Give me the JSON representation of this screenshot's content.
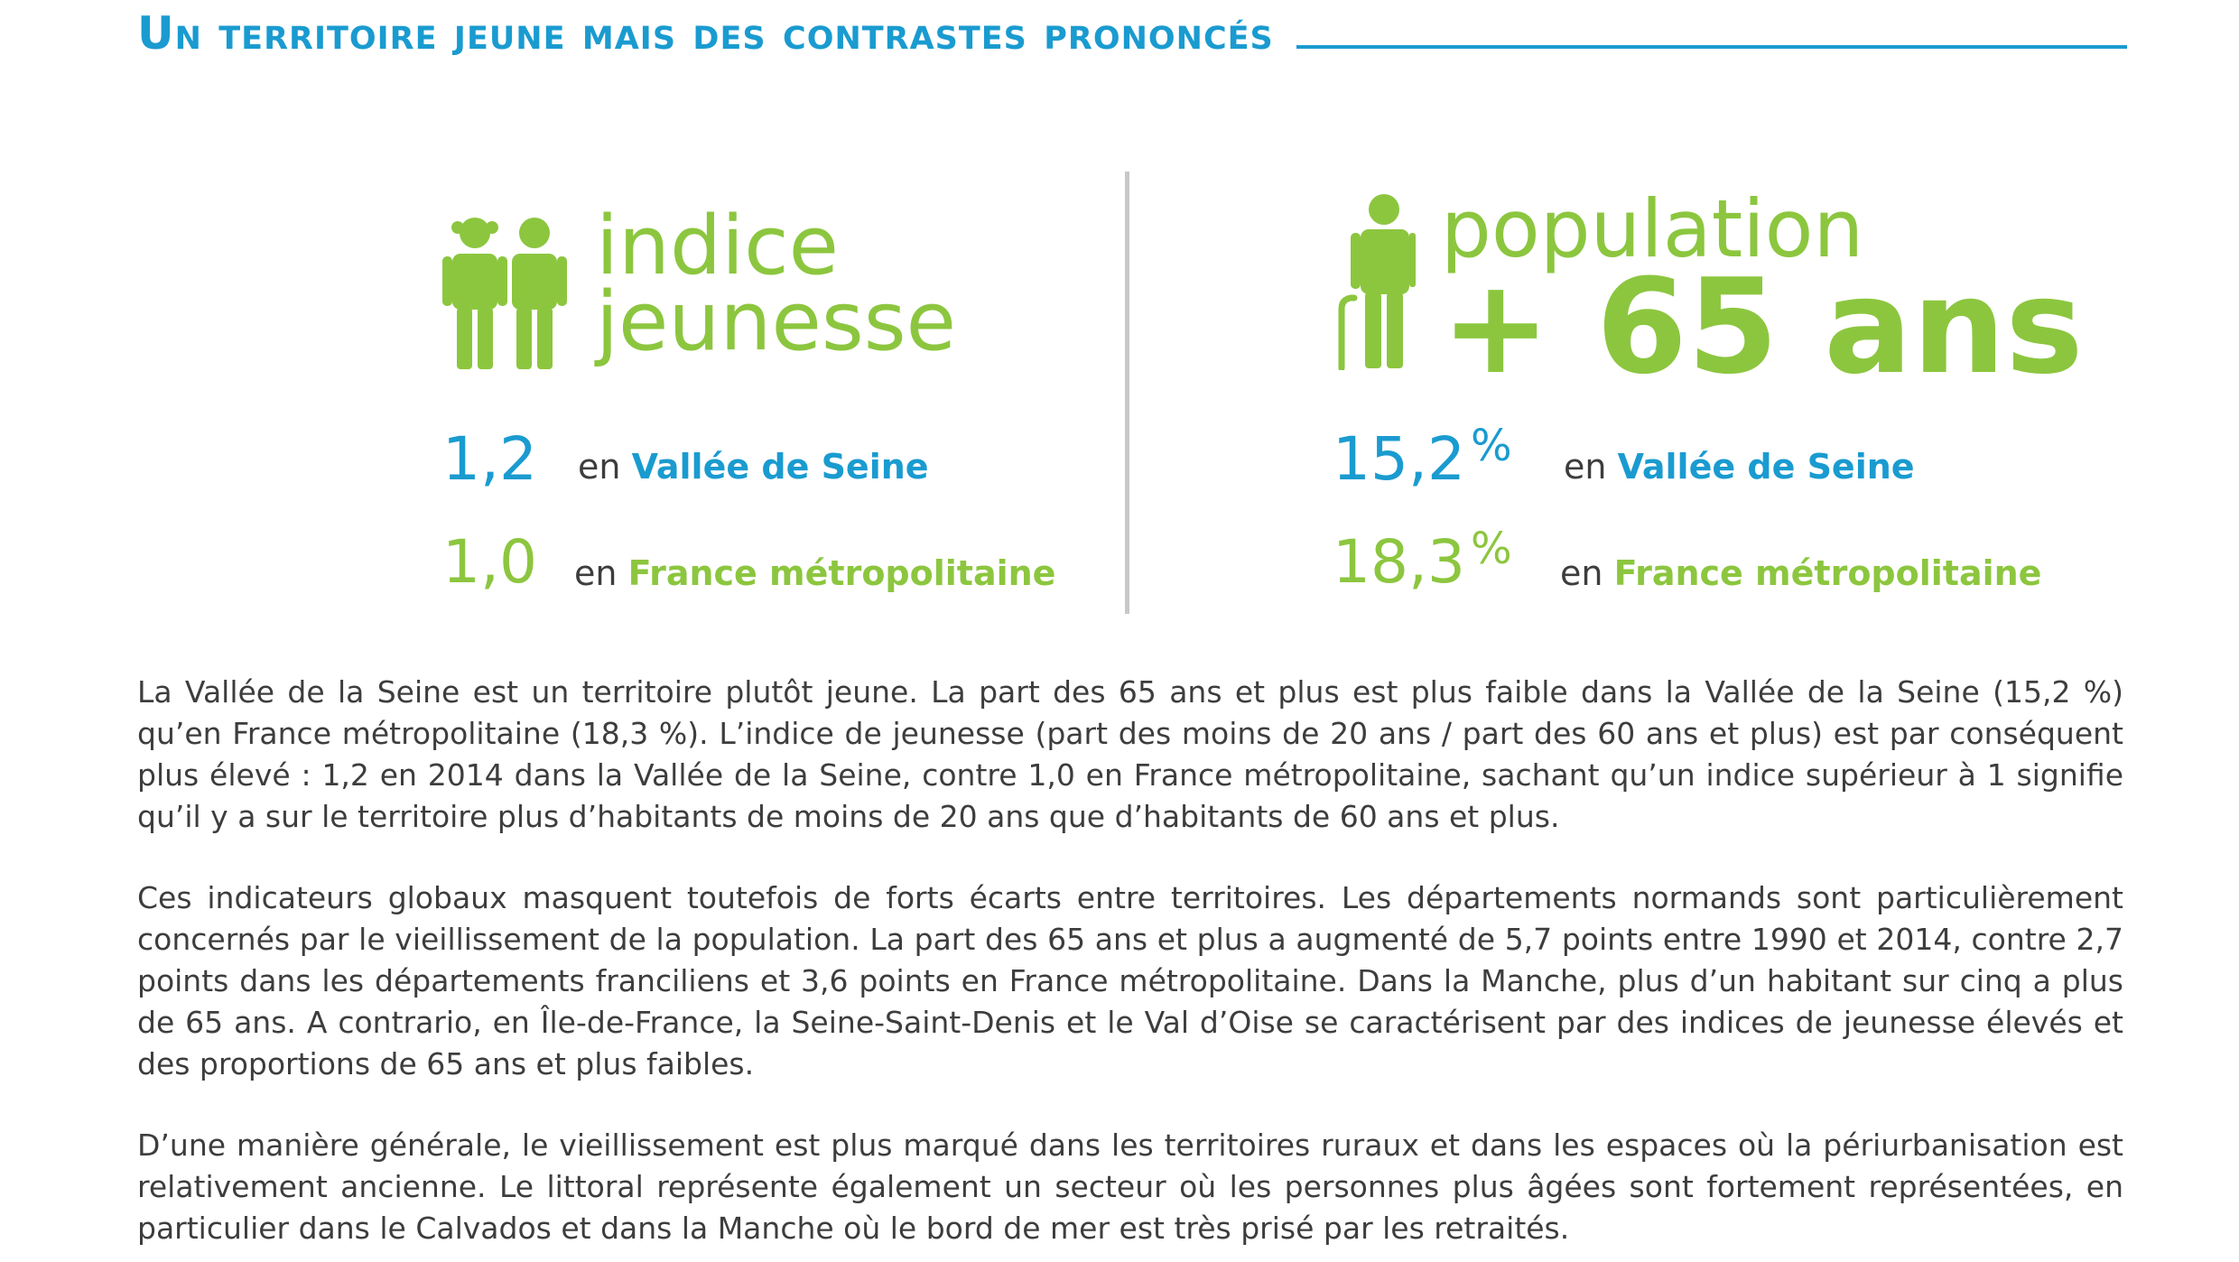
{
  "header": {
    "title": "Un territoire jeune mais des contrastes prononcés"
  },
  "left_panel": {
    "icon": "children-icon",
    "label_line1": "indice",
    "label_line2": "jeunesse",
    "rows": [
      {
        "value": "1,2",
        "prefix": "en",
        "location": "Vallée de Seine",
        "color": "#1a9bd0"
      },
      {
        "value": "1,0",
        "prefix": "en",
        "location": "France métropolitaine",
        "color": "#8cc63f"
      }
    ]
  },
  "right_panel": {
    "icon": "elderly-person-with-cane-icon",
    "label_line1": "population",
    "label_line2": "+ 65 ans",
    "rows": [
      {
        "value": "15,2",
        "unit": "%",
        "prefix": "en",
        "location": "Vallée de Seine",
        "color": "#1a9bd0"
      },
      {
        "value": "18,3",
        "unit": "%",
        "prefix": "en",
        "location": "France métropolitaine",
        "color": "#8cc63f"
      }
    ]
  },
  "colors": {
    "blue": "#1a9bd0",
    "green": "#8cc63f",
    "text": "#3d3d3d",
    "divider": "#c8c8c8"
  },
  "paragraphs": [
    "La Vallée de la Seine est un territoire plutôt jeune. La part des 65 ans et plus est plus faible dans la Vallée de la Seine (15,2 %) qu’en France métropolitaine (18,3 %). L’indice de jeunesse (part des moins de 20 ans / part des 60 ans et plus) est par conséquent plus élevé : 1,2 en 2014 dans la Vallée de la Seine, contre 1,0 en France métropolitaine, sachant qu’un indice supérieur à 1 signifie qu’il y a sur le territoire plus d’habitants de moins de 20 ans que d’habitants de 60 ans et plus.",
    "Ces indicateurs globaux masquent toutefois de forts écarts entre territoires. Les départements normands sont particulièrement concernés par le vieillissement de la population. La part des 65 ans et plus a augmenté de 5,7 points entre 1990 et 2014, contre 2,7 points dans les départements franciliens et 3,6 points en France métropolitaine. Dans la Manche, plus d’un habitant sur cinq a plus de 65 ans. A contrario, en Île-de-France, la Seine-Saint-Denis et le Val d’Oise se caractérisent par des indices de jeunesse élevés et des proportions de 65 ans et plus faibles.",
    "D’une manière générale, le vieillissement est plus marqué dans les territoires ruraux et dans les espaces où la périurbanisation est relativement ancienne. Le littoral représente également un secteur où les personnes plus âgées sont fortement représentées, en particulier dans le Calvados et dans la Manche où le bord de mer est très prisé par les retraités."
  ]
}
